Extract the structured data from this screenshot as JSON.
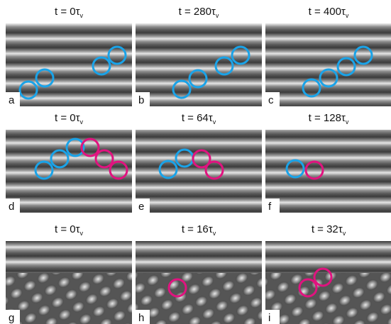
{
  "panels": [
    {
      "title": "t = 0τ",
      "subscript": "v",
      "label": "a"
    },
    {
      "title": "t = 280τ",
      "subscript": "v",
      "label": "b"
    },
    {
      "title": "t = 400τ",
      "subscript": "v",
      "label": "c"
    },
    {
      "title": "t = 0τ",
      "subscript": "v",
      "label": "d"
    },
    {
      "title": "t = 64τ",
      "subscript": "v",
      "label": "e"
    },
    {
      "title": "t = 128τ",
      "subscript": "v",
      "label": "f"
    },
    {
      "title": "t = 0τ",
      "subscript": "v",
      "label": "g"
    },
    {
      "title": "t = 16τ",
      "subscript": "v",
      "label": "h"
    },
    {
      "title": "t = 32τ",
      "subscript": "v",
      "label": "i"
    }
  ]
}
